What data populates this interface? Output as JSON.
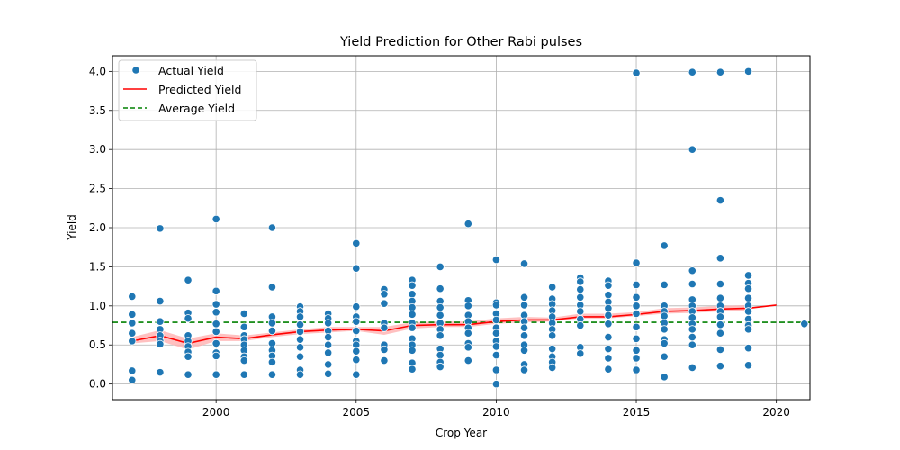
{
  "chart_data": {
    "type": "scatter",
    "title": "Yield Prediction for Other  Rabi pulses",
    "xlabel": "Crop Year",
    "ylabel": "Yield",
    "xlim": [
      1996.3,
      2021.2
    ],
    "ylim": [
      -0.2,
      4.2
    ],
    "xticks": [
      2000,
      2005,
      2010,
      2015,
      2020
    ],
    "xtick_labels": [
      "2000",
      "2005",
      "2010",
      "2015",
      "2020"
    ],
    "yticks": [
      0.0,
      0.5,
      1.0,
      1.5,
      2.0,
      2.5,
      3.0,
      3.5,
      4.0
    ],
    "ytick_labels": [
      "0.0",
      "0.5",
      "1.0",
      "1.5",
      "2.0",
      "2.5",
      "3.0",
      "3.5",
      "4.0"
    ],
    "grid": true,
    "legend_position": "top-left",
    "colors": {
      "scatter": "#1f77b4",
      "predicted": "#ff0000",
      "band": "#ffb0b0",
      "average": "#008000"
    },
    "series": [
      {
        "name": "Actual Yield",
        "kind": "scatter",
        "points": [
          [
            1997,
            1.12
          ],
          [
            1997,
            0.89
          ],
          [
            1997,
            0.78
          ],
          [
            1997,
            0.65
          ],
          [
            1997,
            0.55
          ],
          [
            1997,
            0.17
          ],
          [
            1997,
            0.05
          ],
          [
            1998,
            1.99
          ],
          [
            1998,
            1.06
          ],
          [
            1998,
            0.8
          ],
          [
            1998,
            0.7
          ],
          [
            1998,
            0.62
          ],
          [
            1998,
            0.55
          ],
          [
            1998,
            0.51
          ],
          [
            1998,
            0.15
          ],
          [
            1999,
            1.33
          ],
          [
            1999,
            0.91
          ],
          [
            1999,
            0.84
          ],
          [
            1999,
            0.62
          ],
          [
            1999,
            0.55
          ],
          [
            1999,
            0.48
          ],
          [
            1999,
            0.41
          ],
          [
            1999,
            0.35
          ],
          [
            1999,
            0.12
          ],
          [
            2000,
            2.11
          ],
          [
            2000,
            1.19
          ],
          [
            2000,
            1.02
          ],
          [
            2000,
            0.92
          ],
          [
            2000,
            0.77
          ],
          [
            2000,
            0.67
          ],
          [
            2000,
            0.52
          ],
          [
            2000,
            0.4
          ],
          [
            2000,
            0.36
          ],
          [
            2000,
            0.12
          ],
          [
            2001,
            0.9
          ],
          [
            2001,
            0.73
          ],
          [
            2001,
            0.62
          ],
          [
            2001,
            0.57
          ],
          [
            2001,
            0.5
          ],
          [
            2001,
            0.43
          ],
          [
            2001,
            0.35
          ],
          [
            2001,
            0.3
          ],
          [
            2001,
            0.12
          ],
          [
            2002,
            2.0
          ],
          [
            2002,
            1.24
          ],
          [
            2002,
            0.86
          ],
          [
            2002,
            0.78
          ],
          [
            2002,
            0.68
          ],
          [
            2002,
            0.52
          ],
          [
            2002,
            0.43
          ],
          [
            2002,
            0.36
          ],
          [
            2002,
            0.28
          ],
          [
            2002,
            0.12
          ],
          [
            2003,
            0.99
          ],
          [
            2003,
            0.93
          ],
          [
            2003,
            0.86
          ],
          [
            2003,
            0.76
          ],
          [
            2003,
            0.67
          ],
          [
            2003,
            0.57
          ],
          [
            2003,
            0.47
          ],
          [
            2003,
            0.35
          ],
          [
            2003,
            0.18
          ],
          [
            2003,
            0.12
          ],
          [
            2004,
            0.9
          ],
          [
            2004,
            0.84
          ],
          [
            2004,
            0.78
          ],
          [
            2004,
            0.68
          ],
          [
            2004,
            0.6
          ],
          [
            2004,
            0.5
          ],
          [
            2004,
            0.4
          ],
          [
            2004,
            0.25
          ],
          [
            2004,
            0.13
          ],
          [
            2005,
            1.8
          ],
          [
            2005,
            1.48
          ],
          [
            2005,
            0.99
          ],
          [
            2005,
            0.86
          ],
          [
            2005,
            0.8
          ],
          [
            2005,
            0.68
          ],
          [
            2005,
            0.55
          ],
          [
            2005,
            0.5
          ],
          [
            2005,
            0.42
          ],
          [
            2005,
            0.31
          ],
          [
            2005,
            0.12
          ],
          [
            2006,
            1.21
          ],
          [
            2006,
            1.15
          ],
          [
            2006,
            1.03
          ],
          [
            2006,
            0.78
          ],
          [
            2006,
            0.72
          ],
          [
            2006,
            0.5
          ],
          [
            2006,
            0.44
          ],
          [
            2006,
            0.3
          ],
          [
            2007,
            1.33
          ],
          [
            2007,
            1.26
          ],
          [
            2007,
            1.15
          ],
          [
            2007,
            1.06
          ],
          [
            2007,
            0.98
          ],
          [
            2007,
            0.89
          ],
          [
            2007,
            0.78
          ],
          [
            2007,
            0.72
          ],
          [
            2007,
            0.58
          ],
          [
            2007,
            0.5
          ],
          [
            2007,
            0.43
          ],
          [
            2007,
            0.27
          ],
          [
            2007,
            0.19
          ],
          [
            2008,
            1.5
          ],
          [
            2008,
            1.22
          ],
          [
            2008,
            1.06
          ],
          [
            2008,
            0.98
          ],
          [
            2008,
            0.88
          ],
          [
            2008,
            0.78
          ],
          [
            2008,
            0.7
          ],
          [
            2008,
            0.62
          ],
          [
            2008,
            0.45
          ],
          [
            2008,
            0.37
          ],
          [
            2008,
            0.28
          ],
          [
            2008,
            0.22
          ],
          [
            2009,
            2.05
          ],
          [
            2009,
            1.07
          ],
          [
            2009,
            1.0
          ],
          [
            2009,
            0.88
          ],
          [
            2009,
            0.8
          ],
          [
            2009,
            0.72
          ],
          [
            2009,
            0.65
          ],
          [
            2009,
            0.52
          ],
          [
            2009,
            0.47
          ],
          [
            2009,
            0.3
          ],
          [
            2010,
            1.59
          ],
          [
            2010,
            1.04
          ],
          [
            2010,
            1.01
          ],
          [
            2010,
            0.9
          ],
          [
            2010,
            0.82
          ],
          [
            2010,
            0.72
          ],
          [
            2010,
            0.65
          ],
          [
            2010,
            0.55
          ],
          [
            2010,
            0.48
          ],
          [
            2010,
            0.37
          ],
          [
            2010,
            0.18
          ],
          [
            2010,
            0.0
          ],
          [
            2011,
            1.54
          ],
          [
            2011,
            1.11
          ],
          [
            2011,
            1.01
          ],
          [
            2011,
            0.88
          ],
          [
            2011,
            0.8
          ],
          [
            2011,
            0.72
          ],
          [
            2011,
            0.62
          ],
          [
            2011,
            0.5
          ],
          [
            2011,
            0.43
          ],
          [
            2011,
            0.25
          ],
          [
            2011,
            0.18
          ],
          [
            2012,
            1.24
          ],
          [
            2012,
            1.09
          ],
          [
            2012,
            1.02
          ],
          [
            2012,
            0.94
          ],
          [
            2012,
            0.86
          ],
          [
            2012,
            0.78
          ],
          [
            2012,
            0.7
          ],
          [
            2012,
            0.62
          ],
          [
            2012,
            0.45
          ],
          [
            2012,
            0.35
          ],
          [
            2012,
            0.28
          ],
          [
            2012,
            0.21
          ],
          [
            2013,
            1.36
          ],
          [
            2013,
            1.31
          ],
          [
            2013,
            1.21
          ],
          [
            2013,
            1.11
          ],
          [
            2013,
            1.01
          ],
          [
            2013,
            0.93
          ],
          [
            2013,
            0.83
          ],
          [
            2013,
            0.75
          ],
          [
            2013,
            0.47
          ],
          [
            2013,
            0.39
          ],
          [
            2014,
            1.32
          ],
          [
            2014,
            1.26
          ],
          [
            2014,
            1.14
          ],
          [
            2014,
            1.05
          ],
          [
            2014,
            0.97
          ],
          [
            2014,
            0.88
          ],
          [
            2014,
            0.77
          ],
          [
            2014,
            0.6
          ],
          [
            2014,
            0.45
          ],
          [
            2014,
            0.33
          ],
          [
            2014,
            0.19
          ],
          [
            2015,
            3.98
          ],
          [
            2015,
            1.55
          ],
          [
            2015,
            1.27
          ],
          [
            2015,
            1.11
          ],
          [
            2015,
            1.0
          ],
          [
            2015,
            0.9
          ],
          [
            2015,
            0.73
          ],
          [
            2015,
            0.58
          ],
          [
            2015,
            0.43
          ],
          [
            2015,
            0.33
          ],
          [
            2015,
            0.18
          ],
          [
            2016,
            1.77
          ],
          [
            2016,
            1.27
          ],
          [
            2016,
            1.0
          ],
          [
            2016,
            0.93
          ],
          [
            2016,
            0.87
          ],
          [
            2016,
            0.78
          ],
          [
            2016,
            0.7
          ],
          [
            2016,
            0.57
          ],
          [
            2016,
            0.52
          ],
          [
            2016,
            0.35
          ],
          [
            2016,
            0.09
          ],
          [
            2017,
            3.99
          ],
          [
            2017,
            3.0
          ],
          [
            2017,
            1.45
          ],
          [
            2017,
            1.28
          ],
          [
            2017,
            1.08
          ],
          [
            2017,
            1.0
          ],
          [
            2017,
            0.93
          ],
          [
            2017,
            0.85
          ],
          [
            2017,
            0.77
          ],
          [
            2017,
            0.7
          ],
          [
            2017,
            0.6
          ],
          [
            2017,
            0.5
          ],
          [
            2017,
            0.21
          ],
          [
            2018,
            3.99
          ],
          [
            2018,
            2.35
          ],
          [
            2018,
            1.61
          ],
          [
            2018,
            1.28
          ],
          [
            2018,
            1.1
          ],
          [
            2018,
            1.0
          ],
          [
            2018,
            0.93
          ],
          [
            2018,
            0.86
          ],
          [
            2018,
            0.76
          ],
          [
            2018,
            0.65
          ],
          [
            2018,
            0.44
          ],
          [
            2018,
            0.23
          ],
          [
            2019,
            4.0
          ],
          [
            2019,
            1.39
          ],
          [
            2019,
            1.29
          ],
          [
            2019,
            1.22
          ],
          [
            2019,
            1.1
          ],
          [
            2019,
            1.0
          ],
          [
            2019,
            0.93
          ],
          [
            2019,
            0.83
          ],
          [
            2019,
            0.75
          ],
          [
            2019,
            0.7
          ],
          [
            2019,
            0.46
          ],
          [
            2019,
            0.24
          ],
          [
            2021,
            0.77
          ]
        ]
      },
      {
        "name": "Predicted Yield",
        "kind": "line",
        "x": [
          1997,
          1998,
          1999,
          2000,
          2001,
          2002,
          2003,
          2004,
          2005,
          2006,
          2007,
          2008,
          2009,
          2010,
          2011,
          2012,
          2013,
          2014,
          2015,
          2016,
          2017,
          2018,
          2019,
          2020
        ],
        "y": [
          0.55,
          0.62,
          0.52,
          0.6,
          0.58,
          0.63,
          0.67,
          0.69,
          0.7,
          0.68,
          0.75,
          0.76,
          0.76,
          0.8,
          0.82,
          0.82,
          0.86,
          0.86,
          0.89,
          0.93,
          0.94,
          0.96,
          0.97,
          1.01
        ],
        "band_low": [
          0.52,
          0.55,
          0.44,
          0.55,
          0.55,
          0.6,
          0.64,
          0.66,
          0.68,
          0.63,
          0.71,
          0.73,
          0.73,
          0.77,
          0.79,
          0.8,
          0.84,
          0.84,
          0.87,
          0.9,
          0.91,
          0.93,
          0.94,
          null
        ],
        "band_high": [
          0.6,
          0.69,
          0.58,
          0.65,
          0.62,
          0.66,
          0.7,
          0.73,
          0.73,
          0.73,
          0.79,
          0.8,
          0.8,
          0.84,
          0.86,
          0.85,
          0.9,
          0.9,
          0.92,
          0.97,
          0.98,
          1.0,
          1.01,
          null
        ]
      },
      {
        "name": "Average Yield",
        "kind": "hline",
        "y": 0.79
      }
    ]
  }
}
